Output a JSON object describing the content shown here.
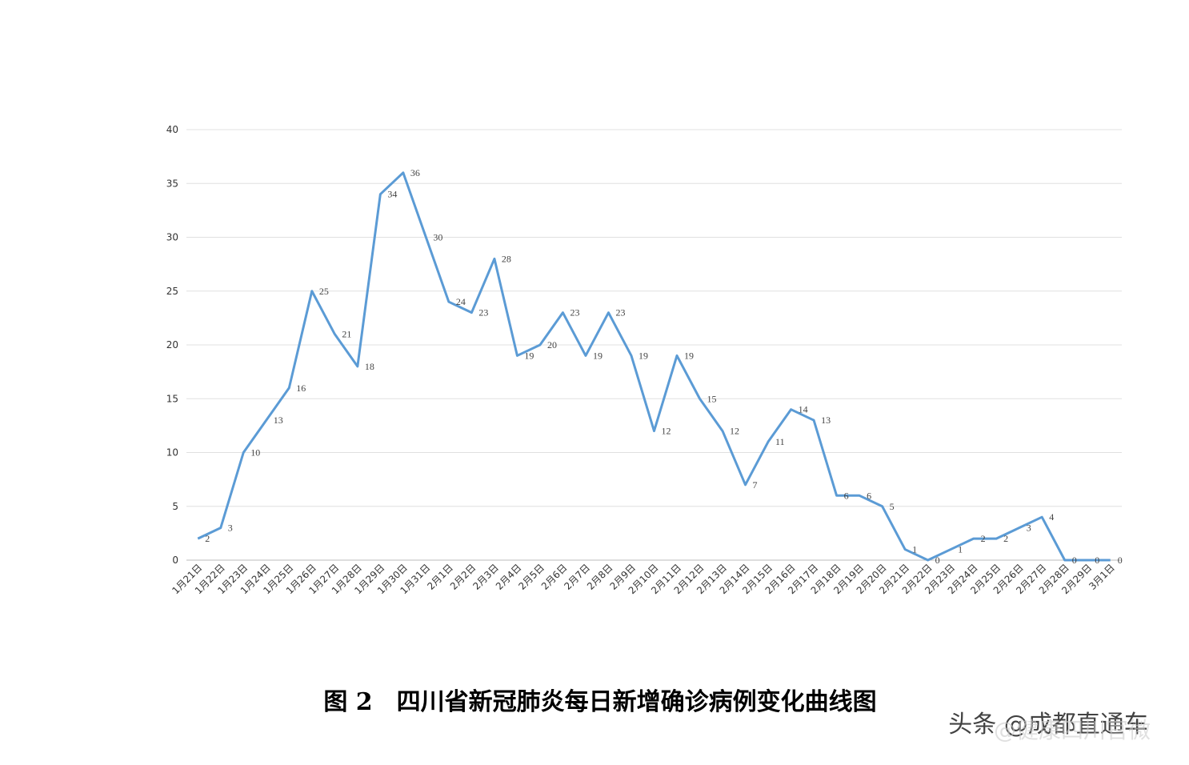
{
  "chart_data": {
    "type": "line",
    "title": "图 2　四川省新冠肺炎每日新增确诊病例变化曲线图",
    "annotations": [
      "头条 @成都直通车",
      "@健康四川官微"
    ],
    "categories": [
      "1月21日",
      "1月22日",
      "1月23日",
      "1月24日",
      "1月25日",
      "1月26日",
      "1月27日",
      "1月28日",
      "1月29日",
      "1月30日",
      "1月31日",
      "2月1日",
      "2月2日",
      "2月3日",
      "2月4日",
      "2月5日",
      "2月6日",
      "2月7日",
      "2月8日",
      "2月9日",
      "2月10日",
      "2月11日",
      "2月12日",
      "2月13日",
      "2月14日",
      "2月15日",
      "2月16日",
      "2月17日",
      "2月18日",
      "2月19日",
      "2月20日",
      "2月21日",
      "2月22日",
      "2月23日",
      "2月24日",
      "2月25日",
      "2月26日",
      "2月27日",
      "2月28日",
      "2月29日",
      "3月1日"
    ],
    "values": [
      2,
      3,
      10,
      13,
      16,
      25,
      21,
      18,
      34,
      36,
      30,
      24,
      23,
      28,
      19,
      20,
      23,
      19,
      23,
      19,
      12,
      19,
      15,
      12,
      7,
      11,
      14,
      13,
      6,
      6,
      5,
      1,
      0,
      1,
      2,
      2,
      3,
      4,
      0,
      0,
      0
    ],
    "color": "#5b9bd5",
    "ylim": [
      0,
      40
    ],
    "yticks": [
      0,
      5,
      10,
      15,
      20,
      25,
      30,
      35,
      40
    ],
    "grid": true
  }
}
